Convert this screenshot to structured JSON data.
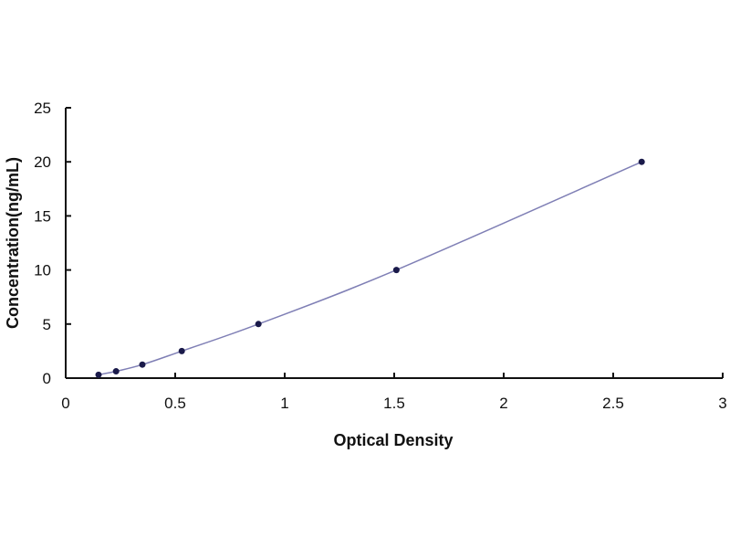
{
  "chart_data": {
    "type": "scatter",
    "title": "",
    "xlabel": "Optical Density",
    "ylabel": "Concentration(ng/mL)",
    "xlim": [
      0,
      3
    ],
    "ylim": [
      0,
      25
    ],
    "xticks": [
      "0",
      "0.5",
      "1",
      "1.5",
      "2",
      "2.5",
      "3"
    ],
    "yticks": [
      "0",
      "5",
      "10",
      "15",
      "20",
      "25"
    ],
    "grid": false,
    "fit_line": true,
    "colors": {
      "points": "#1a1a4a",
      "line": "#7f7fb5",
      "axis": "#111111"
    },
    "points": [
      {
        "x": 0.15,
        "y": 0.31
      },
      {
        "x": 0.23,
        "y": 0.63
      },
      {
        "x": 0.35,
        "y": 1.25
      },
      {
        "x": 0.53,
        "y": 2.5
      },
      {
        "x": 0.88,
        "y": 5
      },
      {
        "x": 1.51,
        "y": 10
      },
      {
        "x": 2.63,
        "y": 20
      }
    ]
  }
}
